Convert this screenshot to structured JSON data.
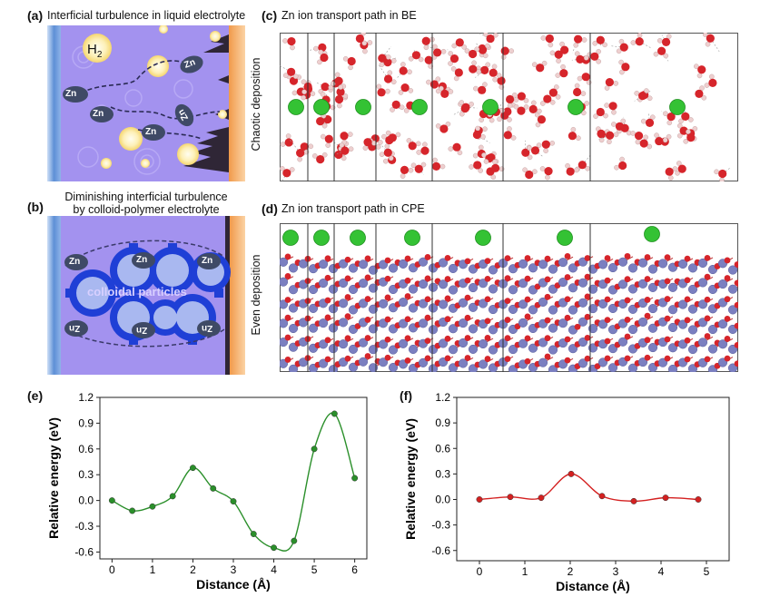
{
  "panel_a": {
    "label": "(a)",
    "title": "Interficial turbulence in liquid electrolyte",
    "side_label": "Chaotic deposition",
    "gas_label": "H",
    "gas_sub": "2",
    "ion": "Zn",
    "colors": {
      "background": "#a392ef",
      "anode": "#5d8fd6",
      "cathode": "#f19a4a",
      "bubble": "#fdf0b8"
    }
  },
  "panel_b": {
    "label": "(b)",
    "title_line1": "Diminishing interficial turbulence",
    "title_line2": "by colloid-polymer electrolyte",
    "side_label": "Even deposition",
    "center_label": "colloidal particles",
    "ion": "Zn",
    "colors": {
      "background": "#a392ef",
      "gear": "#1f3fd6",
      "anode": "#5d8fd6",
      "cathode": "#f19a4a"
    }
  },
  "panel_c": {
    "label": "(c)",
    "title": "Zn ion transport path in BE"
  },
  "panel_d": {
    "label": "(d)",
    "title": "Zn ion transport path in CPE"
  },
  "chart_data": [
    {
      "panel": "(e)",
      "type": "line",
      "xlabel": "Distance (Å)",
      "ylabel": "Relative energy (eV)",
      "xlim": [
        -0.3,
        6.3
      ],
      "ylim": [
        -0.68,
        1.2
      ],
      "xticks": [
        "0",
        "1",
        "2",
        "3",
        "4",
        "5",
        "6"
      ],
      "yticks": [
        "1.2",
        "0.9",
        "0.6",
        "0.3",
        "0.0",
        "-0.3",
        "-0.6"
      ],
      "color": "#2a8f2a",
      "x": [
        0,
        0.5,
        1.0,
        1.5,
        2.0,
        2.5,
        3.0,
        3.5,
        4.0,
        4.5,
        5.0,
        5.5,
        6.0
      ],
      "y": [
        0.0,
        -0.12,
        -0.07,
        0.05,
        0.38,
        0.14,
        -0.01,
        -0.39,
        -0.55,
        -0.47,
        0.6,
        1.01,
        0.26
      ]
    },
    {
      "panel": "(f)",
      "type": "line",
      "xlabel": "Distance (Å)",
      "ylabel": "Relative energy (eV)",
      "xlim": [
        -0.5,
        5.5
      ],
      "ylim": [
        -0.72,
        1.2
      ],
      "xticks": [
        "0",
        "1",
        "2",
        "3",
        "4",
        "5"
      ],
      "yticks": [
        "1.2",
        "0.9",
        "0.6",
        "0.3",
        "0.0",
        "-0.3",
        "-0.6"
      ],
      "color": "#d42020",
      "x": [
        0,
        0.68,
        1.36,
        2.02,
        2.7,
        3.4,
        4.1,
        4.82
      ],
      "y": [
        0.0,
        0.03,
        0.02,
        0.3,
        0.04,
        -0.02,
        0.02,
        0.0
      ]
    }
  ]
}
